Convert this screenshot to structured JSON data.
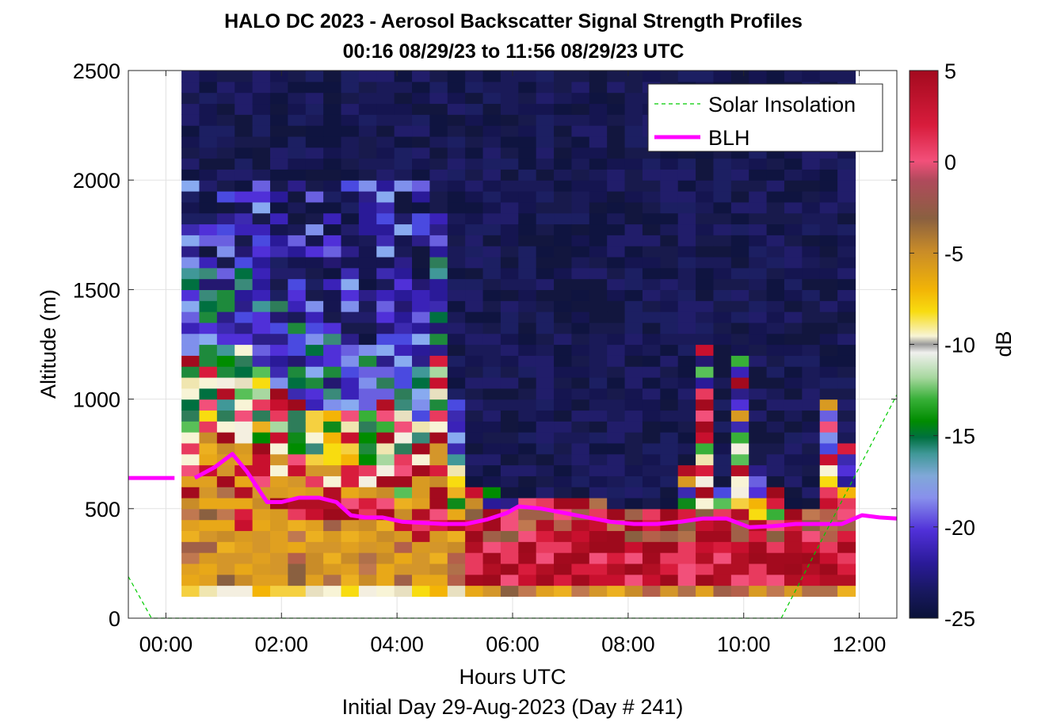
{
  "chart_data": {
    "type": "heatmap",
    "title": "HALO DC 2023 - Aerosol Backscatter Signal Strength Profiles",
    "subtitle": "00:16 08/29/23 to 11:56 08/29/23  UTC",
    "xlabel": "Hours UTC",
    "ylabel": "Altitude (m)",
    "footnote": "Initial Day 29-Aug-2023 (Day # 241)",
    "xlim": [
      -0.65,
      12.65
    ],
    "ylim": [
      0,
      2500
    ],
    "x_ticks": [
      0,
      2,
      4,
      6,
      8,
      10,
      12
    ],
    "x_tick_labels": [
      "00:00",
      "02:00",
      "04:00",
      "06:00",
      "08:00",
      "10:00",
      "12:00"
    ],
    "y_ticks": [
      0,
      500,
      1000,
      1500,
      2000,
      2500
    ],
    "y_tick_labels": [
      "0",
      "500",
      "1000",
      "1500",
      "2000",
      "2500"
    ],
    "grid": true,
    "legend_position": "top-right",
    "colorbar": {
      "label": "dB",
      "range": [
        -25,
        5
      ],
      "ticks": [
        5,
        0,
        -5,
        -10,
        -15,
        -20,
        -25
      ],
      "tick_labels": [
        "5",
        "0",
        "-5",
        "-10",
        "-15",
        "-20",
        "-25"
      ]
    },
    "heatmap": {
      "x_start_hours": 0.27,
      "x_end_hours": 11.93,
      "y_start_m": 100,
      "y_end_m": 2500,
      "note": "backscatter field in dB, described by per-column layer profiles",
      "columns": [
        {
          "blh": 640,
          "aerosol_top": 1700,
          "layer": "red",
          "upper": "blue"
        },
        {
          "blh": 650,
          "aerosol_top": 1650,
          "layer": "red",
          "upper": "blue"
        },
        {
          "blh": 700,
          "aerosol_top": 1600,
          "layer": "red",
          "upper": "blue"
        },
        {
          "blh": 740,
          "aerosol_top": 1650,
          "layer": "mix",
          "upper": "blue"
        },
        {
          "blh": 680,
          "aerosol_top": 1550,
          "layer": "orange",
          "upper": "blue"
        },
        {
          "blh": 600,
          "aerosol_top": 1450,
          "layer": "orange",
          "upper": "blue"
        },
        {
          "blh": 540,
          "aerosol_top": 1350,
          "layer": "red",
          "upper": "blue"
        },
        {
          "blh": 530,
          "aerosol_top": 1300,
          "layer": "orange",
          "upper": "blue"
        },
        {
          "blh": 540,
          "aerosol_top": 1280,
          "layer": "red",
          "upper": "blue"
        },
        {
          "blh": 550,
          "aerosol_top": 1250,
          "layer": "orange",
          "upper": "blue"
        },
        {
          "blh": 545,
          "aerosol_top": 1250,
          "layer": "red",
          "upper": "blue"
        },
        {
          "blh": 540,
          "aerosol_top": 1350,
          "layer": "orange",
          "upper": "blue"
        },
        {
          "blh": 460,
          "aerosol_top": 1400,
          "layer": "red",
          "upper": "blue"
        },
        {
          "blh": 455,
          "aerosol_top": 1300,
          "layer": "red",
          "upper": "blue"
        },
        {
          "blh": 450,
          "aerosol_top": 1850,
          "layer": "red",
          "upper": "blue"
        },
        {
          "blh": 440,
          "aerosol_top": 1000,
          "layer": "red",
          "upper": "blue"
        },
        {
          "blh": 430,
          "aerosol_top": 600,
          "layer": "red",
          "upper": "dark"
        },
        {
          "blh": 430,
          "aerosol_top": 580,
          "layer": "red",
          "upper": "dark"
        },
        {
          "blh": 450,
          "aerosol_top": 560,
          "layer": "red",
          "upper": "dark"
        },
        {
          "blh": 470,
          "aerosol_top": 540,
          "layer": "red",
          "upper": "dark"
        },
        {
          "blh": 510,
          "aerosol_top": 520,
          "layer": "red",
          "upper": "dark"
        },
        {
          "blh": 500,
          "aerosol_top": 520,
          "layer": "red",
          "upper": "dark"
        },
        {
          "blh": 490,
          "aerosol_top": 520,
          "layer": "red",
          "upper": "dark"
        },
        {
          "blh": 470,
          "aerosol_top": 500,
          "layer": "red",
          "upper": "dark"
        },
        {
          "blh": 450,
          "aerosol_top": 500,
          "layer": "red",
          "upper": "dark"
        },
        {
          "blh": 440,
          "aerosol_top": 500,
          "layer": "red",
          "upper": "dark"
        },
        {
          "blh": 430,
          "aerosol_top": 500,
          "layer": "red",
          "upper": "dark"
        },
        {
          "blh": 430,
          "aerosol_top": 500,
          "layer": "red",
          "upper": "dark"
        },
        {
          "blh": 440,
          "aerosol_top": 700,
          "layer": "red",
          "upper": "dark"
        },
        {
          "blh": 450,
          "aerosol_top": 1250,
          "layer": "red",
          "upper": "dark"
        },
        {
          "blh": 460,
          "aerosol_top": 600,
          "layer": "red",
          "upper": "dark"
        },
        {
          "blh": 455,
          "aerosol_top": 1200,
          "layer": "red",
          "upper": "dark"
        },
        {
          "blh": 410,
          "aerosol_top": 700,
          "layer": "red",
          "upper": "dark"
        },
        {
          "blh": 410,
          "aerosol_top": 600,
          "layer": "red",
          "upper": "dark"
        },
        {
          "blh": 420,
          "aerosol_top": 500,
          "layer": "red",
          "upper": "dark"
        },
        {
          "blh": 430,
          "aerosol_top": 480,
          "layer": "red",
          "upper": "dark"
        },
        {
          "blh": 420,
          "aerosol_top": 1000,
          "layer": "red",
          "upper": "dark"
        },
        {
          "blh": 430,
          "aerosol_top": 800,
          "layer": "red",
          "upper": "dark"
        }
      ]
    },
    "series": [
      {
        "name": "BLH",
        "color": "#ff00ff",
        "style": "solid",
        "segments": [
          {
            "x": [
              -0.65,
              0.15
            ],
            "y": [
              640,
              640
            ]
          },
          {
            "x": [
              0.5,
              0.85,
              1.15,
              1.4,
              1.75,
              2.0,
              2.3,
              2.65,
              2.95,
              3.2,
              3.45,
              3.75,
              4.1,
              4.45,
              4.8,
              5.2,
              5.55,
              5.9,
              6.1,
              6.5,
              6.9,
              7.3,
              7.7,
              8.1,
              8.5,
              8.9,
              9.3,
              9.7,
              10.1,
              10.5,
              10.9,
              11.3,
              11.7,
              12.05,
              12.35,
              12.65
            ],
            "y": [
              640,
              690,
              750,
              670,
              530,
              530,
              550,
              550,
              530,
              470,
              460,
              460,
              440,
              435,
              430,
              430,
              450,
              480,
              510,
              500,
              480,
              460,
              440,
              430,
              430,
              440,
              455,
              455,
              415,
              420,
              430,
              430,
              430,
              470,
              460,
              455
            ]
          }
        ]
      },
      {
        "name": "Solar Insolation",
        "color": "#00cc00",
        "style": "dashed",
        "segments": [
          {
            "x": [
              -0.65,
              -0.25,
              10.65,
              12.65
            ],
            "y": [
              190,
              0,
              0,
              1020
            ]
          }
        ]
      }
    ],
    "legend": [
      {
        "label": "Solar Insolation",
        "style": "dashed",
        "color": "#00cc00"
      },
      {
        "label": "BLH",
        "style": "solid",
        "color": "#ff00ff"
      }
    ]
  }
}
